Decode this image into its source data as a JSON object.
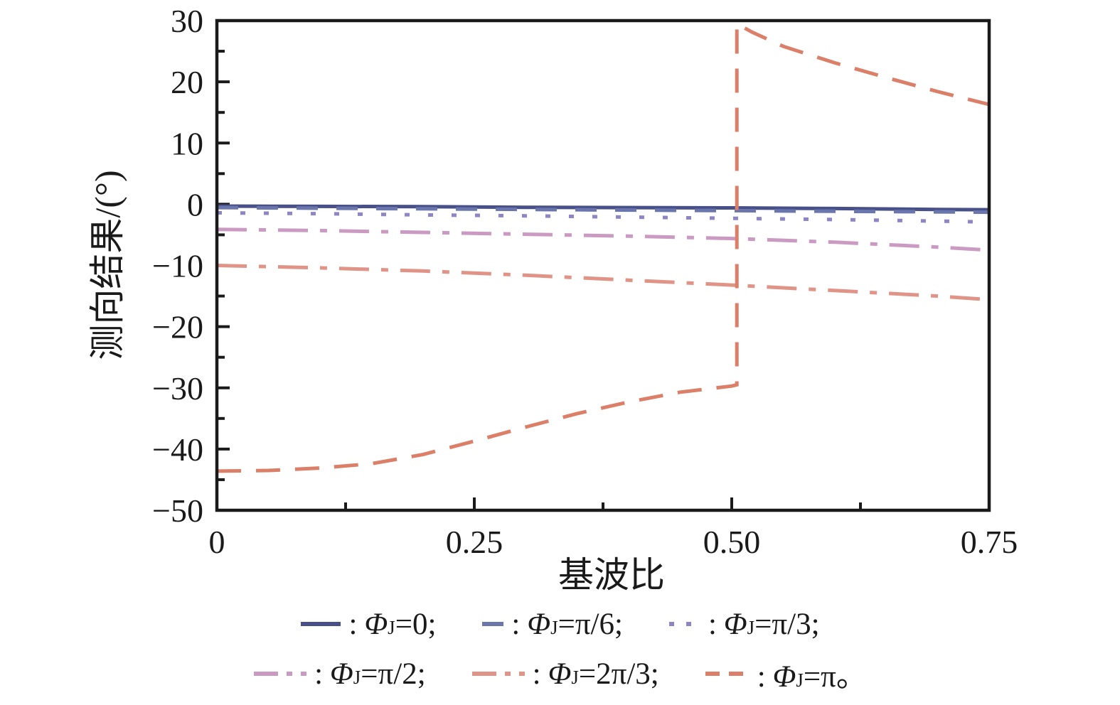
{
  "page": {
    "background": "#ffffff"
  },
  "chart_data": {
    "type": "line",
    "title": "",
    "xlabel": "基波比",
    "ylabel": "测向结果/(°)",
    "xlim": [
      0,
      0.75
    ],
    "ylim": [
      -50,
      30
    ],
    "grid": false,
    "legend_position": "below",
    "x_tick_values": [
      0,
      0.25,
      0.5,
      0.75
    ],
    "x_tick_labels": [
      "0",
      "0.25",
      "0.50",
      "0.75"
    ],
    "x_minor_tick_values": [
      0.125,
      0.375,
      0.625
    ],
    "y_tick_values": [
      30,
      20,
      10,
      0,
      -10,
      -20,
      -30,
      -40,
      -50
    ],
    "y_tick_labels": [
      "30",
      "20",
      "10",
      "0",
      "−10",
      "−20",
      "−30",
      "−40",
      "−50"
    ],
    "y_minor_tick_values": [
      25,
      15,
      5,
      -5,
      -15,
      -25,
      -35,
      -45
    ],
    "axis_color": "#1a1a1a",
    "series": [
      {
        "name": "Φ_J=0",
        "color": "#475089",
        "dash": "solid",
        "x": [
          0,
          0.1,
          0.2,
          0.3,
          0.4,
          0.5,
          0.6,
          0.7,
          0.75
        ],
        "y": [
          -0.3,
          -0.35,
          -0.4,
          -0.5,
          -0.55,
          -0.6,
          -0.7,
          -0.85,
          -0.9
        ]
      },
      {
        "name": "Φ_J=π/6",
        "color": "#6b76ad",
        "dash": "dashed",
        "x": [
          0,
          0.1,
          0.2,
          0.3,
          0.4,
          0.5,
          0.6,
          0.7,
          0.75
        ],
        "y": [
          -0.55,
          -0.65,
          -0.75,
          -0.85,
          -0.95,
          -1.05,
          -1.15,
          -1.25,
          -1.3
        ]
      },
      {
        "name": "Φ_J=π/3",
        "color": "#8d85c5",
        "dash": "dotted",
        "x": [
          0,
          0.1,
          0.2,
          0.3,
          0.4,
          0.5,
          0.6,
          0.7,
          0.75
        ],
        "y": [
          -1.4,
          -1.55,
          -1.75,
          -1.9,
          -2.1,
          -2.3,
          -2.5,
          -2.75,
          -2.9
        ]
      },
      {
        "name": "Φ_J=π/2",
        "color": "#cb9ac2",
        "dash": "dashdot",
        "x": [
          0,
          0.1,
          0.2,
          0.3,
          0.4,
          0.5,
          0.6,
          0.7,
          0.75
        ],
        "y": [
          -4.1,
          -4.3,
          -4.6,
          -4.9,
          -5.2,
          -5.6,
          -6.2,
          -7.0,
          -7.5
        ]
      },
      {
        "name": "Φ_J=2π/3",
        "color": "#e09488",
        "dash": "dashdot",
        "x": [
          0,
          0.1,
          0.2,
          0.3,
          0.4,
          0.5,
          0.6,
          0.7,
          0.75
        ],
        "y": [
          -10.0,
          -10.4,
          -10.9,
          -11.6,
          -12.4,
          -13.2,
          -14.1,
          -15.0,
          -15.6
        ]
      },
      {
        "name": "Φ_J=π",
        "color": "#db7f69",
        "dash": "longdash",
        "x": [
          0,
          0.05,
          0.1,
          0.15,
          0.2,
          0.25,
          0.3,
          0.35,
          0.4,
          0.45,
          0.5,
          0.505,
          0.505,
          0.52,
          0.55,
          0.6,
          0.65,
          0.7,
          0.75
        ],
        "y": [
          -43.6,
          -43.5,
          -43.1,
          -42.4,
          -40.9,
          -38.7,
          -36.4,
          -34.2,
          -32.3,
          -30.7,
          -29.7,
          -29.5,
          29.5,
          28.1,
          25.8,
          23.1,
          20.7,
          18.4,
          16.3
        ]
      }
    ]
  },
  "legend": {
    "rows": [
      {
        "items": [
          {
            "id": "phi-0",
            "swatch": "solid",
            "color": "#475089",
            "colon": ":",
            "phi": "Φ",
            "sub": "J",
            "tail": "=0;"
          },
          {
            "id": "phi-pi-6",
            "swatch": "dash",
            "color": "#6b76ad",
            "colon": ":",
            "phi": "Φ",
            "sub": "J",
            "tail": "=π/6;"
          },
          {
            "id": "phi-pi-3",
            "swatch": "dots",
            "color": "#8d85c5",
            "colon": ":",
            "phi": "Φ",
            "sub": "J",
            "tail": "=π/3;"
          }
        ]
      },
      {
        "items": [
          {
            "id": "phi-pi-2",
            "swatch": "dashdot",
            "color": "#cb9ac2",
            "colon": ":",
            "phi": "Φ",
            "sub": "J",
            "tail": "=π/2;"
          },
          {
            "id": "phi-2pi-3",
            "swatch": "dashdot",
            "color": "#e09488",
            "colon": ":",
            "phi": "Φ",
            "sub": "J",
            "tail": "=2π/3;"
          },
          {
            "id": "phi-pi",
            "swatch": "dashes",
            "color": "#db7f69",
            "colon": ":",
            "phi": "Φ",
            "sub": "J",
            "tail": "=π。"
          }
        ]
      }
    ]
  }
}
